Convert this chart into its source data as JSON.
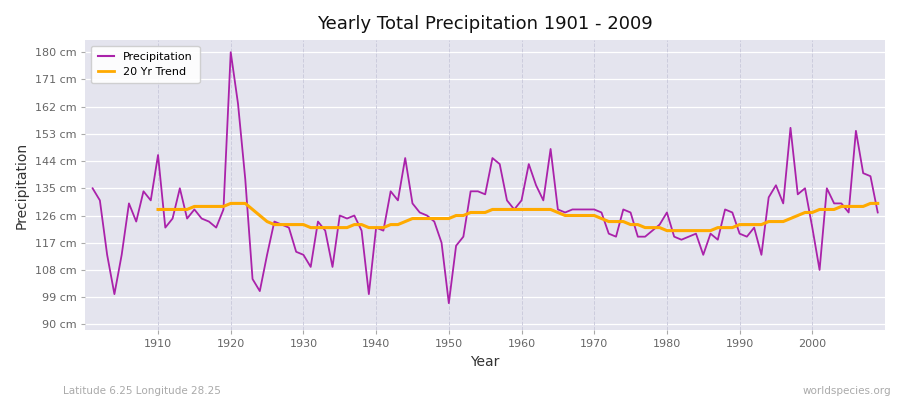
{
  "title": "Yearly Total Precipitation 1901 - 2009",
  "xlabel": "Year",
  "ylabel": "Precipitation",
  "subtitle": "Latitude 6.25 Longitude 28.25",
  "watermark": "worldspecies.org",
  "years": [
    1901,
    1902,
    1903,
    1904,
    1905,
    1906,
    1907,
    1908,
    1909,
    1910,
    1911,
    1912,
    1913,
    1914,
    1915,
    1916,
    1917,
    1918,
    1919,
    1920,
    1921,
    1922,
    1923,
    1924,
    1925,
    1926,
    1927,
    1928,
    1929,
    1930,
    1931,
    1932,
    1933,
    1934,
    1935,
    1936,
    1937,
    1938,
    1939,
    1940,
    1941,
    1942,
    1943,
    1944,
    1945,
    1946,
    1947,
    1948,
    1949,
    1950,
    1951,
    1952,
    1953,
    1954,
    1955,
    1956,
    1957,
    1958,
    1959,
    1960,
    1961,
    1962,
    1963,
    1964,
    1965,
    1966,
    1967,
    1968,
    1969,
    1970,
    1971,
    1972,
    1973,
    1974,
    1975,
    1976,
    1977,
    1978,
    1979,
    1980,
    1981,
    1982,
    1983,
    1984,
    1985,
    1986,
    1987,
    1988,
    1989,
    1990,
    1991,
    1992,
    1993,
    1994,
    1995,
    1996,
    1997,
    1998,
    1999,
    2000,
    2001,
    2002,
    2003,
    2004,
    2005,
    2006,
    2007,
    2008,
    2009
  ],
  "precip": [
    135,
    131,
    113,
    100,
    113,
    130,
    124,
    134,
    131,
    146,
    122,
    125,
    135,
    125,
    128,
    125,
    124,
    122,
    128,
    180,
    163,
    138,
    105,
    101,
    113,
    124,
    123,
    122,
    114,
    113,
    109,
    124,
    121,
    109,
    126,
    125,
    126,
    121,
    100,
    122,
    121,
    134,
    131,
    145,
    130,
    127,
    126,
    124,
    117,
    97,
    116,
    119,
    134,
    134,
    133,
    145,
    143,
    131,
    128,
    131,
    143,
    136,
    131,
    148,
    128,
    127,
    128,
    128,
    128,
    128,
    127,
    120,
    119,
    128,
    127,
    119,
    119,
    121,
    123,
    127,
    119,
    118,
    119,
    120,
    113,
    120,
    118,
    128,
    127,
    120,
    119,
    122,
    113,
    132,
    136,
    130,
    155,
    133,
    135,
    122,
    108,
    135,
    130,
    130,
    127,
    154,
    140,
    139,
    127
  ],
  "trend": [
    null,
    null,
    null,
    null,
    null,
    null,
    null,
    null,
    null,
    128,
    128,
    128,
    128,
    128,
    129,
    129,
    129,
    129,
    129,
    130,
    130,
    130,
    128,
    126,
    124,
    123,
    123,
    123,
    123,
    123,
    122,
    122,
    122,
    122,
    122,
    122,
    123,
    123,
    122,
    122,
    122,
    123,
    123,
    124,
    125,
    125,
    125,
    125,
    125,
    125,
    126,
    126,
    127,
    127,
    127,
    128,
    128,
    128,
    128,
    128,
    128,
    128,
    128,
    128,
    127,
    126,
    126,
    126,
    126,
    126,
    125,
    124,
    124,
    124,
    123,
    123,
    122,
    122,
    122,
    121,
    121,
    121,
    121,
    121,
    121,
    121,
    122,
    122,
    122,
    123,
    123,
    123,
    123,
    124,
    124,
    124,
    125,
    126,
    127,
    127,
    128,
    128,
    128,
    129,
    129,
    129,
    129,
    130,
    130
  ],
  "precip_color": "#aa22aa",
  "trend_color": "#ffaa00",
  "fig_bg_color": "#ffffff",
  "plot_bg_color": "#e4e4ee",
  "grid_h_color": "#ffffff",
  "grid_v_color": "#ccccdd",
  "yticks": [
    90,
    99,
    108,
    117,
    126,
    135,
    144,
    153,
    162,
    171,
    180
  ],
  "ytick_labels": [
    "90 cm",
    "99 cm",
    "108 cm",
    "117 cm",
    "126 cm",
    "135 cm",
    "144 cm",
    "153 cm",
    "162 cm",
    "171 cm",
    "180 cm"
  ],
  "xticks": [
    1910,
    1920,
    1930,
    1940,
    1950,
    1960,
    1970,
    1980,
    1990,
    2000
  ],
  "ylim": [
    88,
    184
  ],
  "xlim": [
    1900,
    2010
  ]
}
